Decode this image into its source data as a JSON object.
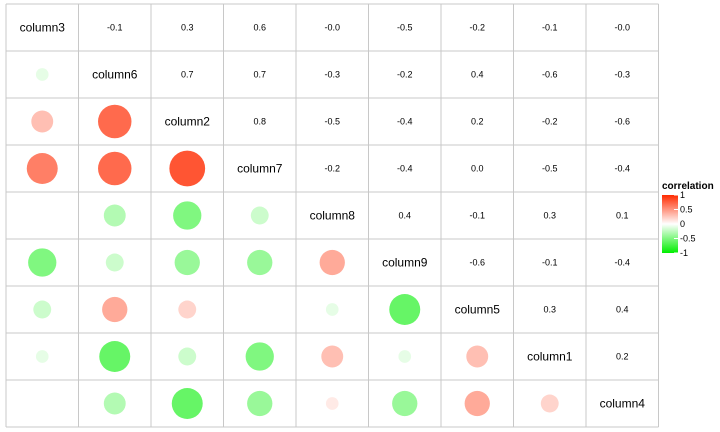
{
  "chart_data": {
    "type": "heatmap",
    "variables": [
      "column3",
      "column6",
      "column2",
      "column7",
      "column8",
      "column9",
      "column5",
      "column1",
      "column4"
    ],
    "matrix": [
      [
        1.0,
        -0.1,
        0.3,
        0.6,
        -0.0,
        -0.5,
        -0.2,
        -0.1,
        -0.0
      ],
      [
        -0.1,
        1.0,
        0.7,
        0.7,
        -0.3,
        -0.2,
        0.4,
        -0.6,
        -0.3
      ],
      [
        0.3,
        0.7,
        1.0,
        0.8,
        -0.5,
        -0.4,
        0.2,
        -0.2,
        -0.6
      ],
      [
        0.6,
        0.7,
        0.8,
        1.0,
        -0.2,
        -0.4,
        0.0,
        -0.5,
        -0.4
      ],
      [
        -0.0,
        -0.3,
        -0.5,
        -0.2,
        1.0,
        0.4,
        -0.1,
        0.3,
        0.1
      ],
      [
        -0.5,
        -0.2,
        -0.4,
        -0.4,
        0.4,
        1.0,
        -0.6,
        -0.1,
        -0.4
      ],
      [
        -0.2,
        0.4,
        0.2,
        0.0,
        -0.1,
        -0.6,
        1.0,
        0.3,
        0.4
      ],
      [
        -0.1,
        -0.6,
        -0.2,
        -0.5,
        0.3,
        -0.1,
        0.3,
        1.0,
        0.2
      ],
      [
        -0.0,
        -0.3,
        -0.6,
        -0.4,
        0.1,
        -0.4,
        0.4,
        0.2,
        1.0
      ]
    ],
    "upper_labels": [
      [
        null,
        "-0.1",
        "0.3",
        "0.6",
        "-0.0",
        "-0.5",
        "-0.2",
        "-0.1",
        "-0.0"
      ],
      [
        null,
        null,
        "0.7",
        "0.7",
        "-0.3",
        "-0.2",
        "0.4",
        "-0.6",
        "-0.3"
      ],
      [
        null,
        null,
        null,
        "0.8",
        "-0.5",
        "-0.4",
        "0.2",
        "-0.2",
        "-0.6"
      ],
      [
        null,
        null,
        null,
        null,
        "-0.2",
        "-0.4",
        "0.0",
        "-0.5",
        "-0.4"
      ],
      [
        null,
        null,
        null,
        null,
        null,
        "0.4",
        "-0.1",
        "0.3",
        "0.1"
      ],
      [
        null,
        null,
        null,
        null,
        null,
        null,
        "-0.6",
        "-0.1",
        "-0.4"
      ],
      [
        null,
        null,
        null,
        null,
        null,
        null,
        null,
        "0.3",
        "0.4"
      ],
      [
        null,
        null,
        null,
        null,
        null,
        null,
        null,
        null,
        "0.2"
      ],
      [
        null,
        null,
        null,
        null,
        null,
        null,
        null,
        null,
        null
      ]
    ],
    "lower_triangle": "circles sized and colored by correlation",
    "legend": {
      "title": "correlation",
      "ticks": [
        "1",
        "0.5",
        "0",
        "-0.5",
        "-1"
      ],
      "tick_values": [
        1,
        0.5,
        0,
        -0.5,
        -1
      ],
      "placement": "right"
    },
    "color_high": "#ff2a00",
    "color_mid": "#ffffff",
    "color_low": "#00ee00",
    "range": [
      -1,
      1
    ],
    "grid": true
  }
}
